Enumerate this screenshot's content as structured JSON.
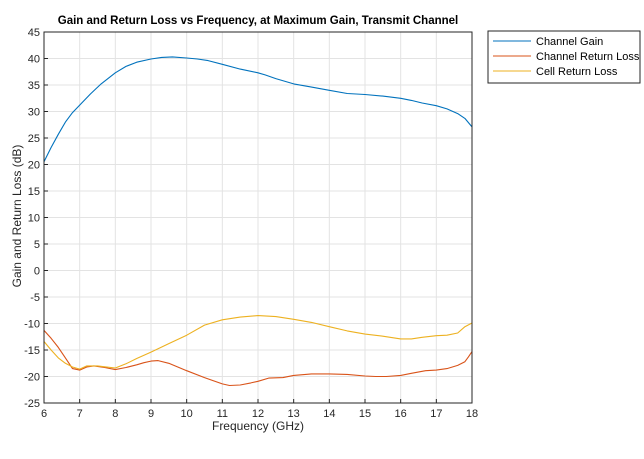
{
  "chart_data": {
    "type": "line",
    "title": "Gain and Return Loss vs Frequency, at Maximum Gain, Transmit Channel",
    "xlabel": "Frequency (GHz)",
    "ylabel": "Gain and Return Loss (dB)",
    "xlim": [
      6,
      18
    ],
    "ylim": [
      -25,
      45
    ],
    "xticks": [
      6,
      7,
      8,
      9,
      10,
      11,
      12,
      13,
      14,
      15,
      16,
      17,
      18
    ],
    "yticks": [
      -25,
      -20,
      -15,
      -10,
      -5,
      0,
      5,
      10,
      15,
      20,
      25,
      30,
      35,
      40,
      45
    ],
    "grid": true,
    "legend_position": "outside-top-right",
    "series": [
      {
        "name": "Channel Gain",
        "color": "#0072BD",
        "x": [
          6,
          6.2,
          6.4,
          6.6,
          6.8,
          7,
          7.3,
          7.6,
          8,
          8.3,
          8.6,
          9,
          9.3,
          9.6,
          10,
          10.3,
          10.6,
          11,
          11.5,
          12,
          12.2,
          12.5,
          13,
          13.5,
          14,
          14.5,
          15,
          15.5,
          16,
          16.3,
          16.6,
          17,
          17.3,
          17.6,
          17.8,
          18
        ],
        "y": [
          20.5,
          23.2,
          25.7,
          28.0,
          29.8,
          31.2,
          33.3,
          35.2,
          37.3,
          38.5,
          39.3,
          39.9,
          40.2,
          40.3,
          40.1,
          39.9,
          39.6,
          38.9,
          38.0,
          37.3,
          36.9,
          36.2,
          35.2,
          34.6,
          34.0,
          33.4,
          33.2,
          32.9,
          32.5,
          32.1,
          31.6,
          31.1,
          30.5,
          29.6,
          28.7,
          27.1
        ]
      },
      {
        "name": "Channel Return Loss",
        "color": "#D95319",
        "x": [
          6,
          6.2,
          6.4,
          6.6,
          6.8,
          7,
          7.2,
          7.4,
          7.7,
          8,
          8.3,
          8.6,
          8.8,
          9,
          9.2,
          9.5,
          10,
          10.5,
          11,
          11.2,
          11.5,
          11.8,
          12,
          12.3,
          12.7,
          13,
          13.5,
          14,
          14.5,
          15,
          15.3,
          15.6,
          16,
          16.3,
          16.7,
          17,
          17.3,
          17.6,
          17.8,
          17.9,
          18
        ],
        "y": [
          -11.3,
          -12.8,
          -14.5,
          -16.5,
          -18.5,
          -18.8,
          -18.2,
          -18.0,
          -18.3,
          -18.7,
          -18.3,
          -17.8,
          -17.4,
          -17.1,
          -17.0,
          -17.5,
          -18.9,
          -20.2,
          -21.4,
          -21.7,
          -21.6,
          -21.2,
          -20.9,
          -20.3,
          -20.2,
          -19.8,
          -19.5,
          -19.5,
          -19.6,
          -19.9,
          -20.0,
          -20.0,
          -19.8,
          -19.4,
          -18.9,
          -18.8,
          -18.5,
          -17.9,
          -17.2,
          -16.3,
          -15.3
        ]
      },
      {
        "name": "Cell Return Loss",
        "color": "#EDB120",
        "x": [
          6,
          6.2,
          6.4,
          6.6,
          6.8,
          7,
          7.2,
          7.5,
          8,
          8.3,
          8.6,
          9,
          9.5,
          10,
          10.5,
          11,
          11.5,
          12,
          12.5,
          13,
          13.5,
          14,
          14.5,
          15,
          15.5,
          16,
          16.3,
          16.6,
          17,
          17.3,
          17.6,
          17.8,
          18
        ],
        "y": [
          -13.4,
          -15.0,
          -16.5,
          -17.5,
          -18.2,
          -18.6,
          -18.0,
          -18.0,
          -18.4,
          -17.6,
          -16.6,
          -15.4,
          -13.8,
          -12.2,
          -10.3,
          -9.3,
          -8.8,
          -8.5,
          -8.7,
          -9.2,
          -9.8,
          -10.6,
          -11.4,
          -12.0,
          -12.4,
          -12.9,
          -12.9,
          -12.6,
          -12.3,
          -12.2,
          -11.8,
          -10.6,
          -9.9
        ]
      }
    ]
  }
}
